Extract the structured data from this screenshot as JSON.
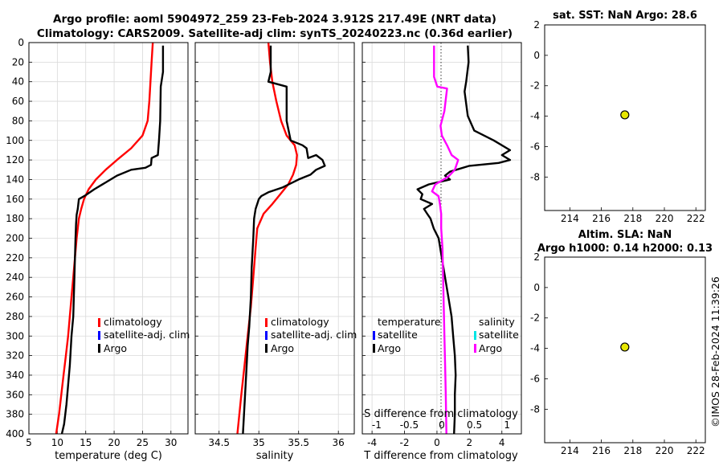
{
  "header": {
    "title_line1": "Argo profile: aoml 5904972_259 23-Feb-2024 3.912S 217.49E (NRT data)",
    "title_line2": "Climatology: CARS2009. Satellite-adj clim: synTS_20240223.nc (0.36d earlier)"
  },
  "watermark": "©IMOS 28-Feb-2024 11:39:26",
  "colors": {
    "climatology": "#ff0000",
    "satellite": "#0000ff",
    "argo": "#000000",
    "sal_diff": "#ff00ff",
    "sal_sat": "#00e5e5",
    "marker": "#e6e600"
  },
  "chart_data": [
    {
      "name": "temperature",
      "type": "line",
      "xlabel": "temperature (deg C)",
      "xlim": [
        5,
        33
      ],
      "xticks": [
        5,
        10,
        15,
        20,
        25,
        30
      ],
      "ylim": [
        0,
        400
      ],
      "yticks": [
        0,
        20,
        40,
        60,
        80,
        100,
        120,
        140,
        160,
        180,
        200,
        220,
        240,
        260,
        280,
        300,
        320,
        340,
        360,
        380,
        400
      ],
      "y_direction": "reversed",
      "grid": true,
      "legend": [
        "climatology",
        "satellite-adj. clim",
        "Argo"
      ],
      "series": [
        {
          "name": "climatology",
          "color": "#ff0000",
          "points": [
            [
              26.8,
              0
            ],
            [
              26.6,
              20
            ],
            [
              26.4,
              40
            ],
            [
              26.2,
              60
            ],
            [
              25.9,
              80
            ],
            [
              25,
              95
            ],
            [
              23,
              108
            ],
            [
              20.5,
              120
            ],
            [
              18.5,
              130
            ],
            [
              16.8,
              140
            ],
            [
              15.5,
              150
            ],
            [
              14.7,
              160
            ],
            [
              14.2,
              170
            ],
            [
              13.8,
              180
            ],
            [
              13.4,
              200
            ],
            [
              13.1,
              220
            ],
            [
              12.8,
              240
            ],
            [
              12.5,
              260
            ],
            [
              12.2,
              280
            ],
            [
              11.9,
              300
            ],
            [
              11.5,
              320
            ],
            [
              11.1,
              340
            ],
            [
              10.7,
              360
            ],
            [
              10.3,
              380
            ],
            [
              9.8,
              400
            ]
          ]
        },
        {
          "name": "Argo",
          "color": "#000000",
          "points": [
            [
              28.6,
              3
            ],
            [
              28.6,
              30
            ],
            [
              28.2,
              45
            ],
            [
              28.1,
              80
            ],
            [
              27.9,
              100
            ],
            [
              27.7,
              115
            ],
            [
              26.6,
              118
            ],
            [
              26.5,
              125
            ],
            [
              25.5,
              128
            ],
            [
              23,
              130
            ],
            [
              20.5,
              136
            ],
            [
              18.5,
              143
            ],
            [
              16.5,
              150
            ],
            [
              15,
              156
            ],
            [
              13.8,
              160
            ],
            [
              13.6,
              170
            ],
            [
              13.4,
              176
            ],
            [
              13.3,
              185
            ],
            [
              13.2,
              200
            ],
            [
              13.1,
              220
            ],
            [
              13.0,
              240
            ],
            [
              12.9,
              260
            ],
            [
              12.8,
              280
            ],
            [
              12.5,
              300
            ],
            [
              12.2,
              330
            ],
            [
              11.9,
              350
            ],
            [
              11.6,
              370
            ],
            [
              11.2,
              390
            ],
            [
              10.8,
              400
            ]
          ]
        }
      ]
    },
    {
      "name": "salinity",
      "type": "line",
      "xlabel": "salinity",
      "xlim": [
        34.2,
        36.2
      ],
      "xticks": [
        34.5,
        35,
        35.5,
        36
      ],
      "xticklabels": [
        "34.5",
        "35",
        "35.5",
        "36"
      ],
      "ylim": [
        0,
        400
      ],
      "y_direction": "reversed",
      "grid": true,
      "legend": [
        "climatology",
        "satellite-adj. clim",
        "Argo"
      ],
      "series": [
        {
          "name": "climatology",
          "color": "#ff0000",
          "points": [
            [
              35.12,
              0
            ],
            [
              35.14,
              20
            ],
            [
              35.17,
              40
            ],
            [
              35.22,
              60
            ],
            [
              35.28,
              80
            ],
            [
              35.35,
              95
            ],
            [
              35.45,
              105
            ],
            [
              35.48,
              115
            ],
            [
              35.47,
              125
            ],
            [
              35.43,
              135
            ],
            [
              35.37,
              145
            ],
            [
              35.27,
              155
            ],
            [
              35.17,
              165
            ],
            [
              35.06,
              175
            ],
            [
              34.98,
              190
            ],
            [
              34.96,
              210
            ],
            [
              34.93,
              240
            ],
            [
              34.9,
              270
            ],
            [
              34.86,
              300
            ],
            [
              34.82,
              330
            ],
            [
              34.78,
              360
            ],
            [
              34.73,
              400
            ]
          ]
        },
        {
          "name": "Argo",
          "color": "#000000",
          "points": [
            [
              35.15,
              3
            ],
            [
              35.15,
              30
            ],
            [
              35.12,
              40
            ],
            [
              35.35,
              45
            ],
            [
              35.35,
              80
            ],
            [
              35.4,
              100
            ],
            [
              35.55,
              105
            ],
            [
              35.6,
              108
            ],
            [
              35.62,
              118
            ],
            [
              35.72,
              115
            ],
            [
              35.8,
              120
            ],
            [
              35.83,
              126
            ],
            [
              35.72,
              130
            ],
            [
              35.65,
              135
            ],
            [
              35.5,
              140
            ],
            [
              35.3,
              148
            ],
            [
              35.12,
              153
            ],
            [
              35.03,
              157
            ],
            [
              35.0,
              160
            ],
            [
              34.96,
              170
            ],
            [
              34.94,
              180
            ],
            [
              34.93,
              200
            ],
            [
              34.91,
              230
            ],
            [
              34.9,
              260
            ],
            [
              34.88,
              290
            ],
            [
              34.86,
              310
            ],
            [
              34.84,
              340
            ],
            [
              34.82,
              370
            ],
            [
              34.8,
              400
            ]
          ]
        }
      ]
    },
    {
      "name": "difference",
      "type": "line",
      "xlabel": "T difference from climatology",
      "xlabel_top": "S difference from climatology",
      "xlim": [
        -4.6,
        5.2
      ],
      "xticks": [
        -4,
        -2,
        0,
        2,
        4
      ],
      "top_xticks": [
        -1,
        -0.5,
        0,
        0.5,
        1
      ],
      "top_xticklabels": [
        "-1",
        "-0.5",
        "0",
        "0.5",
        "1"
      ],
      "ylim": [
        0,
        400
      ],
      "y_direction": "reversed",
      "grid": true,
      "legend_left_title": "temperature",
      "legend_left": [
        "satellite",
        "Argo"
      ],
      "legend_right_title": "salinity",
      "legend_right": [
        "satellite",
        "Argo"
      ],
      "series": [
        {
          "name": "T difference Argo",
          "color": "#000000",
          "points": [
            [
              1.9,
              3
            ],
            [
              1.95,
              20
            ],
            [
              1.8,
              40
            ],
            [
              1.7,
              50
            ],
            [
              1.9,
              75
            ],
            [
              2.3,
              90
            ],
            [
              3.5,
              100
            ],
            [
              4.5,
              110
            ],
            [
              4.0,
              115
            ],
            [
              4.5,
              120
            ],
            [
              3.8,
              123
            ],
            [
              2.0,
              126
            ],
            [
              0.8,
              132
            ],
            [
              0.5,
              136
            ],
            [
              0.8,
              140
            ],
            [
              -0.5,
              145
            ],
            [
              -1.2,
              150
            ],
            [
              -0.9,
              155
            ],
            [
              -1.0,
              160
            ],
            [
              -0.3,
              165
            ],
            [
              -0.8,
              170
            ],
            [
              -0.6,
              175
            ],
            [
              -0.4,
              180
            ],
            [
              -0.2,
              190
            ],
            [
              0.1,
              200
            ],
            [
              0.3,
              220
            ],
            [
              0.5,
              240
            ],
            [
              0.7,
              260
            ],
            [
              0.9,
              280
            ],
            [
              1.0,
              300
            ],
            [
              1.1,
              320
            ],
            [
              1.15,
              340
            ],
            [
              1.1,
              360
            ],
            [
              1.1,
              380
            ],
            [
              1.05,
              400
            ]
          ]
        },
        {
          "name": "S difference Argo",
          "color": "#ff00ff",
          "top_axis": true,
          "points": [
            [
              -0.12,
              3
            ],
            [
              -0.12,
              30
            ],
            [
              -0.12,
              35
            ],
            [
              -0.07,
              45
            ],
            [
              0.08,
              47
            ],
            [
              0.04,
              70
            ],
            [
              -0.02,
              85
            ],
            [
              0.0,
              95
            ],
            [
              0.08,
              105
            ],
            [
              0.15,
              115
            ],
            [
              0.25,
              120
            ],
            [
              0.2,
              130
            ],
            [
              0.1,
              137
            ],
            [
              -0.1,
              145
            ],
            [
              -0.15,
              152
            ],
            [
              -0.05,
              157
            ],
            [
              -0.03,
              165
            ],
            [
              -0.01,
              175
            ],
            [
              -0.01,
              190
            ],
            [
              0.01,
              210
            ],
            [
              0.02,
              240
            ],
            [
              0.03,
              270
            ],
            [
              0.04,
              300
            ],
            [
              0.05,
              330
            ],
            [
              0.06,
              360
            ],
            [
              0.07,
              400
            ]
          ]
        }
      ]
    },
    {
      "name": "sat_sst",
      "type": "scatter",
      "title": "sat. SST: NaN Argo: 28.6",
      "xlim": [
        212.4,
        222.6
      ],
      "xticks": [
        214,
        216,
        218,
        220,
        222
      ],
      "ylim": [
        -10.2,
        2
      ],
      "yticks": [
        2,
        0,
        -2,
        -4,
        -6,
        -8
      ],
      "points": [
        [
          217.49,
          -3.912
        ]
      ]
    },
    {
      "name": "altim_sla",
      "type": "scatter",
      "title": "Altim. SLA: NaN",
      "subtitle": "Argo h1000: 0.14 h2000: 0.13",
      "xlim": [
        212.4,
        222.6
      ],
      "xticks": [
        214,
        216,
        218,
        220,
        222
      ],
      "ylim": [
        -10.2,
        2
      ],
      "yticks": [
        2,
        0,
        -2,
        -4,
        -6,
        -8
      ],
      "points": [
        [
          217.49,
          -3.912
        ]
      ]
    }
  ]
}
